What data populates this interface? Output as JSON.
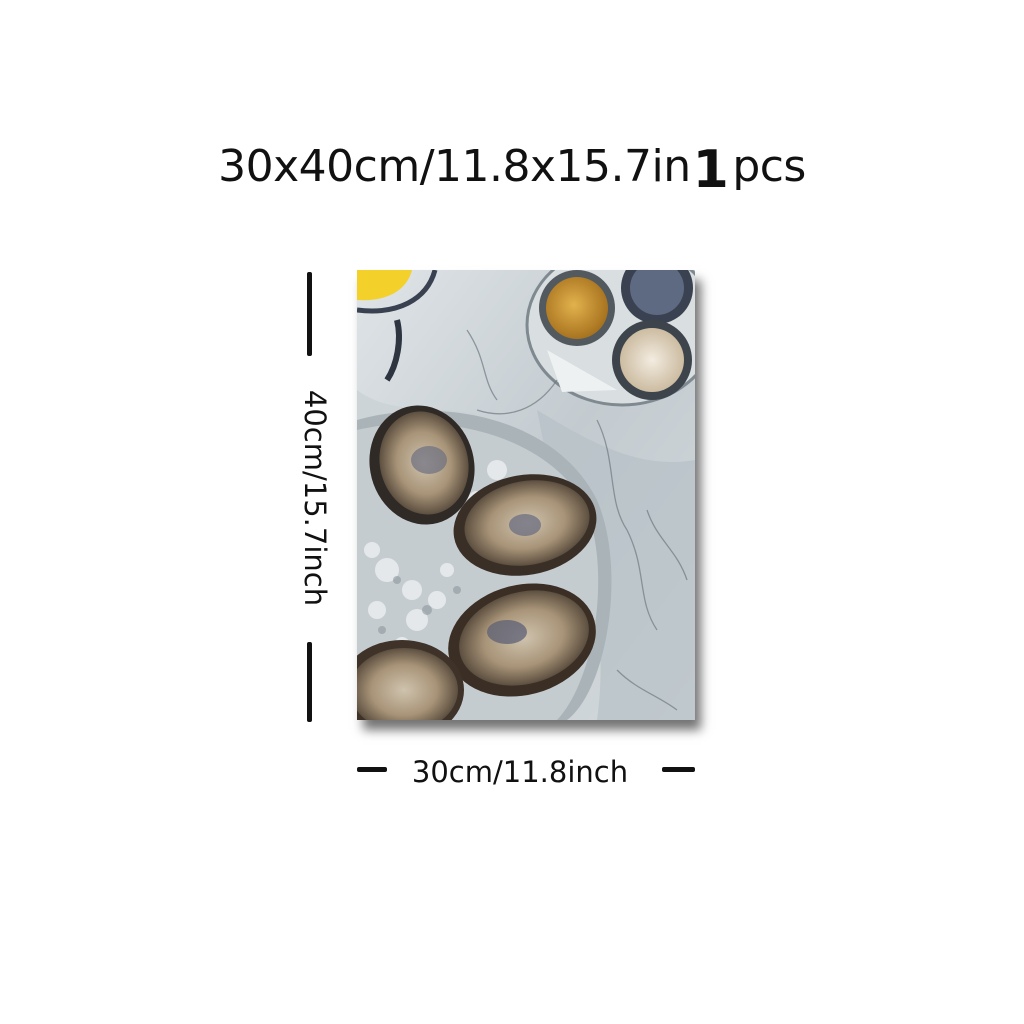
{
  "title": {
    "size_text": "30x40cm/11.8x15.7in",
    "quantity_number": "1",
    "quantity_unit": "pcs"
  },
  "dimensions": {
    "height_label": "40cm/15.7inch",
    "width_label": "30cm/11.8inch"
  },
  "artwork": {
    "subject": "oysters-on-ice-watercolor",
    "colors": {
      "ice_gray": "#c9d0d4",
      "shadow_gray": "#7f8a90",
      "shell_brown": "#8a7a63",
      "lemon_yellow": "#f3d12a",
      "sauce_amber": "#c9952e",
      "navy": "#3a4150"
    }
  }
}
